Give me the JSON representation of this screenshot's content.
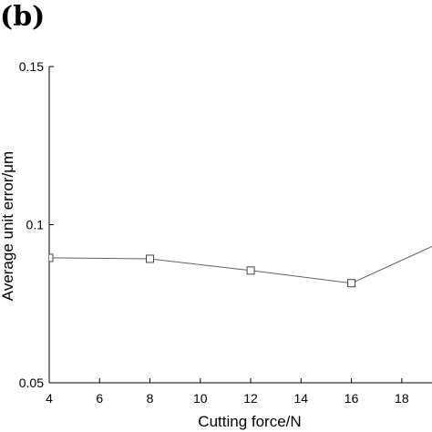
{
  "panel_label": "(b)",
  "chart_data": {
    "type": "line",
    "xlabel": "Cutting force/N",
    "ylabel": "Average unit error/μm",
    "xlim": [
      4,
      19.2
    ],
    "ylim": [
      0.05,
      0.15
    ],
    "x_ticks": [
      4,
      6,
      8,
      10,
      12,
      14,
      16,
      18
    ],
    "y_ticks": [
      0.05,
      0.1,
      0.15
    ],
    "y_tick_labels": [
      "0.05",
      "0.1",
      "0.15"
    ],
    "grid": false,
    "series": [
      {
        "marker": "square",
        "color": "#606060",
        "x": [
          4,
          8,
          12,
          16,
          20
        ],
        "y": [
          0.0895,
          0.0892,
          0.0855,
          0.0815,
          0.096
        ]
      }
    ]
  }
}
